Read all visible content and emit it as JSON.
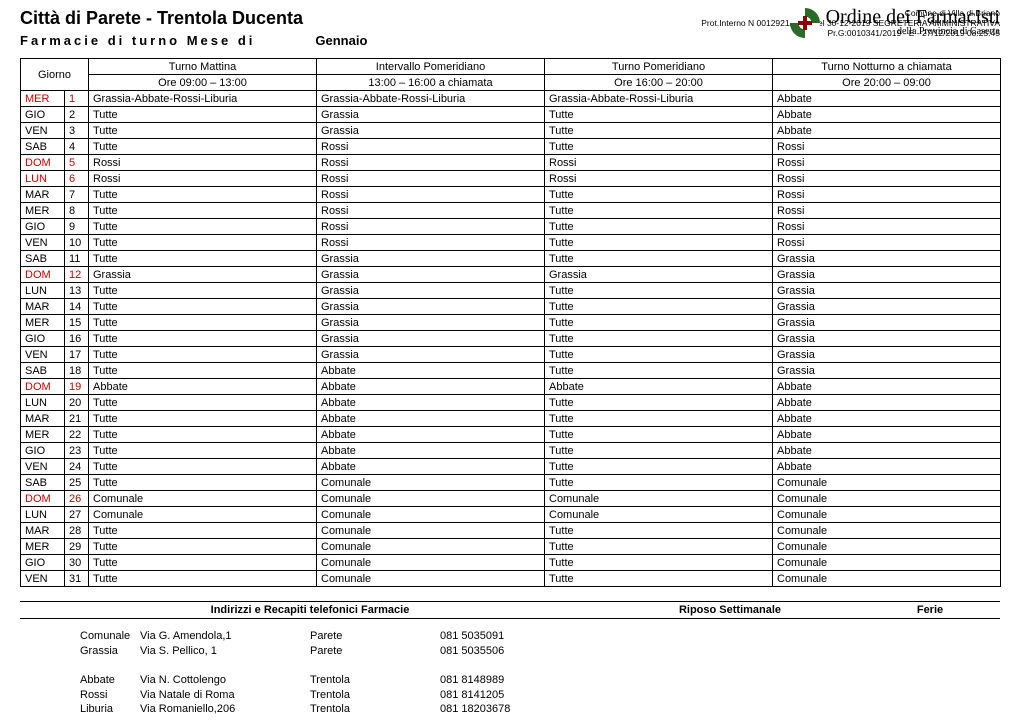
{
  "header": {
    "title": "Città di  Parete - Trentola Ducenta",
    "subtitle_left": "Farmacie   di   turno   Mese   di",
    "subtitle_month": "Gennaio"
  },
  "org": {
    "line1": "Comune di Villa di Briano",
    "line2": "Prot.Interno N 0012921/2019 del 30-12-2019 SEGRETERIA AMMINISTRATIVA",
    "line3": "Pr.G:0010341/2019 - E - 27/12/2019 08:25:45",
    "name": "Ordine dei Farmacisti",
    "sub": "della Provincia di Caserta"
  },
  "columns": {
    "giorno": "Giorno",
    "c1_top": "Turno Mattina",
    "c1_bot": "Ore 09:00 – 13:00",
    "c2_top": "Intervallo Pomeridiano",
    "c2_bot": "13:00 – 16:00 a chiamata",
    "c3_top": "Turno Pomeridiano",
    "c3_bot": "Ore 16:00 – 20:00",
    "c4_top": "Turno Notturno a chiamata",
    "c4_bot": "Ore 20:00 – 09:00"
  },
  "rows": [
    {
      "day": "MER",
      "n": "1",
      "red": true,
      "c": [
        "Grassia-Abbate-Rossi-Liburia",
        "Grassia-Abbate-Rossi-Liburia",
        "Grassia-Abbate-Rossi-Liburia",
        "Abbate"
      ]
    },
    {
      "day": "GIO",
      "n": "2",
      "red": false,
      "c": [
        "Tutte",
        "Grassia",
        "Tutte",
        "Abbate"
      ]
    },
    {
      "day": "VEN",
      "n": "3",
      "red": false,
      "c": [
        "Tutte",
        "Grassia",
        "Tutte",
        "Abbate"
      ]
    },
    {
      "day": "SAB",
      "n": "4",
      "red": false,
      "c": [
        "Tutte",
        "Rossi",
        "Tutte",
        "Rossi"
      ]
    },
    {
      "day": "DOM",
      "n": "5",
      "red": true,
      "c": [
        "Rossi",
        "Rossi",
        "Rossi",
        "Rossi"
      ]
    },
    {
      "day": "LUN",
      "n": "6",
      "red": true,
      "c": [
        "Rossi",
        "Rossi",
        "Rossi",
        "Rossi"
      ]
    },
    {
      "day": "MAR",
      "n": "7",
      "red": false,
      "c": [
        "Tutte",
        "Rossi",
        "Tutte",
        "Rossi"
      ]
    },
    {
      "day": "MER",
      "n": "8",
      "red": false,
      "c": [
        "Tutte",
        "Rossi",
        "Tutte",
        "Rossi"
      ]
    },
    {
      "day": "GIO",
      "n": "9",
      "red": false,
      "c": [
        "Tutte",
        "Rossi",
        "Tutte",
        "Rossi"
      ]
    },
    {
      "day": "VEN",
      "n": "10",
      "red": false,
      "c": [
        "Tutte",
        "Rossi",
        "Tutte",
        "Rossi"
      ]
    },
    {
      "day": "SAB",
      "n": "11",
      "red": false,
      "c": [
        "Tutte",
        "Grassia",
        "Tutte",
        "Grassia"
      ]
    },
    {
      "day": "DOM",
      "n": "12",
      "red": true,
      "c": [
        "Grassia",
        "Grassia",
        "Grassia",
        "Grassia"
      ]
    },
    {
      "day": "LUN",
      "n": "13",
      "red": false,
      "c": [
        "Tutte",
        "Grassia",
        "Tutte",
        "Grassia"
      ]
    },
    {
      "day": "MAR",
      "n": "14",
      "red": false,
      "c": [
        "Tutte",
        "Grassia",
        "Tutte",
        "Grassia"
      ]
    },
    {
      "day": "MER",
      "n": "15",
      "red": false,
      "c": [
        "Tutte",
        "Grassia",
        "Tutte",
        "Grassia"
      ]
    },
    {
      "day": "GIO",
      "n": "16",
      "red": false,
      "c": [
        "Tutte",
        "Grassia",
        "Tutte",
        "Grassia"
      ]
    },
    {
      "day": "VEN",
      "n": "17",
      "red": false,
      "c": [
        "Tutte",
        "Grassia",
        "Tutte",
        "Grassia"
      ]
    },
    {
      "day": "SAB",
      "n": "18",
      "red": false,
      "c": [
        "Tutte",
        "Abbate",
        "Tutte",
        "Grassia"
      ]
    },
    {
      "day": "DOM",
      "n": "19",
      "red": true,
      "c": [
        "Abbate",
        "Abbate",
        "Abbate",
        "Abbate"
      ]
    },
    {
      "day": "LUN",
      "n": "20",
      "red": false,
      "c": [
        "Tutte",
        "Abbate",
        "Tutte",
        "Abbate"
      ]
    },
    {
      "day": "MAR",
      "n": "21",
      "red": false,
      "c": [
        "Tutte",
        "Abbate",
        "Tutte",
        "Abbate"
      ]
    },
    {
      "day": "MER",
      "n": "22",
      "red": false,
      "c": [
        "Tutte",
        "Abbate",
        "Tutte",
        "Abbate"
      ]
    },
    {
      "day": "GIO",
      "n": "23",
      "red": false,
      "c": [
        "Tutte",
        "Abbate",
        "Tutte",
        "Abbate"
      ]
    },
    {
      "day": "VEN",
      "n": "24",
      "red": false,
      "c": [
        "Tutte",
        "Abbate",
        "Tutte",
        "Abbate"
      ]
    },
    {
      "day": "SAB",
      "n": "25",
      "red": false,
      "c": [
        "Tutte",
        "Comunale",
        "Tutte",
        "Comunale"
      ]
    },
    {
      "day": "DOM",
      "n": "26",
      "red": true,
      "c": [
        "Comunale",
        "Comunale",
        "Comunale",
        "Comunale"
      ]
    },
    {
      "day": "LUN",
      "n": "27",
      "red": false,
      "c": [
        "Comunale",
        "Comunale",
        "Comunale",
        "Comunale"
      ]
    },
    {
      "day": "MAR",
      "n": "28",
      "red": false,
      "c": [
        "Tutte",
        "Comunale",
        "Tutte",
        "Comunale"
      ]
    },
    {
      "day": "MER",
      "n": "29",
      "red": false,
      "c": [
        "Tutte",
        "Comunale",
        "Tutte",
        "Comunale"
      ]
    },
    {
      "day": "GIO",
      "n": "30",
      "red": false,
      "c": [
        "Tutte",
        "Comunale",
        "Tutte",
        "Comunale"
      ]
    },
    {
      "day": "VEN",
      "n": "31",
      "red": false,
      "c": [
        "Tutte",
        "Comunale",
        "Tutte",
        "Comunale"
      ]
    }
  ],
  "footer": {
    "h1": "Indirizzi e Recapiti telefonici Farmacie",
    "h2": "Riposo Settimanale",
    "h3": "Ferie"
  },
  "addresses": {
    "group1": [
      {
        "name": "Comunale",
        "addr": "Via G. Amendola,1",
        "city": "Parete",
        "phone": "081 5035091"
      },
      {
        "name": "Grassia",
        "addr": "Via S. Pellico, 1",
        "city": "Parete",
        "phone": "081 5035506"
      }
    ],
    "group2": [
      {
        "name": "Abbate",
        "addr": "Via N. Cottolengo",
        "city": "Trentola",
        "phone": "081 8148989"
      },
      {
        "name": "Rossi",
        "addr": "Via Natale di Roma",
        "city": "Trentola",
        "phone": "081 8141205"
      },
      {
        "name": "Liburia",
        "addr": "Via Romaniello,206",
        "city": "Trentola",
        "phone": "081 18203678"
      }
    ]
  }
}
